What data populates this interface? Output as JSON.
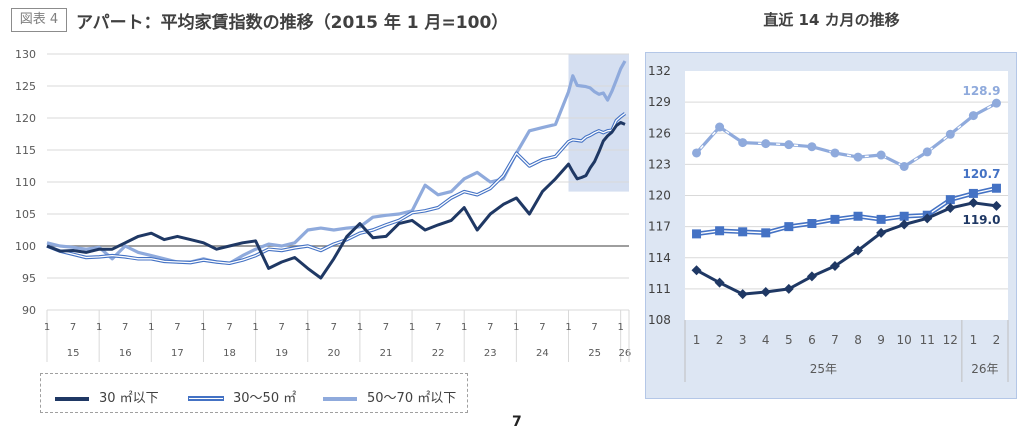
{
  "header": {
    "figure_tag": "図表 4",
    "title": "アパート：平均家賃指数の推移（2015 年 1 月=100）"
  },
  "right_title": "直近 14 カ月の推移",
  "page_number": "7",
  "colors": {
    "s30": "#1f3864",
    "s3050": "#4472c4",
    "s5070": "#8faadc",
    "highlight": "#d0dcf0",
    "panel": "#dde6f3"
  },
  "legend": [
    "30 ㎡以下",
    "30～50 ㎡",
    "50～70 ㎡以下"
  ],
  "chart_data": [
    {
      "type": "line",
      "title": "アパート：平均家賃指数の推移（2015 年 1 月=100）",
      "ylim": [
        90,
        130
      ],
      "y_ticks": [
        "90",
        "95",
        "100",
        "105",
        "110",
        "115",
        "120",
        "125",
        "130"
      ],
      "reference_line": 100,
      "grid": true,
      "x_month_ticks": [
        "1",
        "7"
      ],
      "years": [
        "15",
        "16",
        "17",
        "18",
        "19",
        "20",
        "21",
        "22",
        "23",
        "24",
        "25",
        "26"
      ],
      "x_note": "2015-01 to 2026-02; quarterly points (Jan/Apr/Jul/Oct) 2015–2024, monthly 2025-01–2026-02",
      "highlight_range": [
        "2025-01",
        "2026-02"
      ],
      "x": [
        "2015-01",
        "2015-04",
        "2015-07",
        "2015-10",
        "2016-01",
        "2016-04",
        "2016-07",
        "2016-10",
        "2017-01",
        "2017-04",
        "2017-07",
        "2017-10",
        "2018-01",
        "2018-04",
        "2018-07",
        "2018-10",
        "2019-01",
        "2019-04",
        "2019-07",
        "2019-10",
        "2020-01",
        "2020-04",
        "2020-07",
        "2020-10",
        "2021-01",
        "2021-04",
        "2021-07",
        "2021-10",
        "2022-01",
        "2022-04",
        "2022-07",
        "2022-10",
        "2023-01",
        "2023-04",
        "2023-07",
        "2023-10",
        "2024-01",
        "2024-04",
        "2024-07",
        "2024-10",
        "2025-01",
        "2025-02",
        "2025-03",
        "2025-04",
        "2025-05",
        "2025-06",
        "2025-07",
        "2025-08",
        "2025-09",
        "2025-10",
        "2025-11",
        "2025-12",
        "2026-01",
        "2026-02"
      ],
      "series": [
        {
          "name": "30 ㎡以下",
          "values": [
            100,
            99.2,
            99.3,
            99.0,
            99.5,
            99.5,
            100.5,
            101.5,
            102.0,
            101.0,
            101.5,
            101.0,
            100.5,
            99.5,
            100.0,
            100.5,
            100.8,
            96.5,
            97.5,
            98.2,
            96.5,
            95.0,
            98.0,
            101.5,
            103.5,
            101.3,
            101.5,
            103.5,
            104.0,
            102.5,
            103.3,
            104.0,
            106.0,
            102.5,
            105.0,
            106.5,
            107.5,
            105.0,
            108.5,
            110.5,
            112.8,
            111.6,
            110.5,
            110.7,
            111.0,
            112.2,
            113.2,
            114.7,
            116.4,
            117.2,
            117.8,
            118.8,
            119.3,
            119.0
          ]
        },
        {
          "name": "30～50 ㎡",
          "values": [
            100,
            99.2,
            98.7,
            98.2,
            98.3,
            98.5,
            98.3,
            98.0,
            98.0,
            97.6,
            97.5,
            97.4,
            97.8,
            97.5,
            97.3,
            97.8,
            98.5,
            99.5,
            99.3,
            99.7,
            100.0,
            99.3,
            100.3,
            101.0,
            102.0,
            102.5,
            103.3,
            104.0,
            105.2,
            105.5,
            106.0,
            107.5,
            108.5,
            108.0,
            109.0,
            111.0,
            114.5,
            112.5,
            113.5,
            114.0,
            116.3,
            116.6,
            116.5,
            116.4,
            117.0,
            117.3,
            117.7,
            118.0,
            117.7,
            118.0,
            118.1,
            119.6,
            120.2,
            120.7
          ]
        },
        {
          "name": "50～70 ㎡以下",
          "values": [
            100.5,
            100.0,
            99.8,
            99.5,
            99.8,
            98.0,
            100.0,
            99.0,
            98.5,
            98.0,
            97.5,
            97.5,
            98.0,
            97.5,
            97.3,
            98.5,
            99.5,
            100.3,
            100.0,
            100.5,
            102.5,
            102.8,
            102.5,
            102.8,
            103.0,
            104.5,
            104.8,
            105.0,
            105.5,
            109.5,
            108.0,
            108.5,
            110.5,
            111.5,
            110.0,
            110.5,
            114.5,
            118.0,
            118.5,
            119.0,
            124.1,
            126.6,
            125.1,
            125.0,
            124.9,
            124.7,
            124.1,
            123.7,
            123.9,
            122.8,
            124.2,
            125.9,
            127.7,
            128.9
          ]
        }
      ]
    },
    {
      "type": "line",
      "title": "直近 14 カ月の推移",
      "ylim": [
        108,
        132
      ],
      "y_ticks": [
        "108",
        "111",
        "114",
        "117",
        "120",
        "123",
        "126",
        "129",
        "132"
      ],
      "grid": true,
      "categories": [
        "1",
        "2",
        "3",
        "4",
        "5",
        "6",
        "7",
        "8",
        "9",
        "10",
        "11",
        "12",
        "1",
        "2"
      ],
      "year_groups": [
        {
          "label": "25年",
          "count": 12
        },
        {
          "label": "26年",
          "count": 2
        }
      ],
      "series": [
        {
          "name": "30 ㎡以下",
          "marker": "diamond",
          "values": [
            112.8,
            111.6,
            110.5,
            110.7,
            111.0,
            112.2,
            113.2,
            114.7,
            116.4,
            117.2,
            117.8,
            118.8,
            119.3,
            119.0
          ],
          "end_label": "119.0"
        },
        {
          "name": "30～50 ㎡",
          "marker": "square",
          "values": [
            116.3,
            116.6,
            116.5,
            116.4,
            117.0,
            117.3,
            117.7,
            118.0,
            117.7,
            118.0,
            118.1,
            119.6,
            120.2,
            120.7
          ],
          "end_label": "120.7"
        },
        {
          "name": "50～70 ㎡以下",
          "marker": "circle",
          "values": [
            124.1,
            126.6,
            125.1,
            125.0,
            124.9,
            124.7,
            124.1,
            123.7,
            123.9,
            122.8,
            124.2,
            125.9,
            127.7,
            128.9
          ],
          "end_label": "128.9"
        }
      ]
    }
  ]
}
